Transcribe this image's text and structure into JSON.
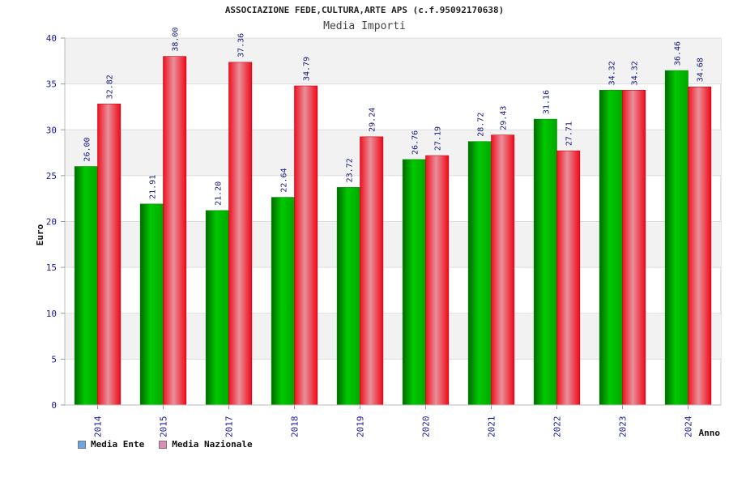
{
  "chart_data": {
    "type": "bar",
    "title": "ASSOCIAZIONE FEDE,CULTURA,ARTE APS (c.f.95092170638)",
    "subtitle": "Media Importi",
    "ylabel": "Euro",
    "xlabel": "Anno",
    "ylim": [
      0,
      40
    ],
    "yticks": [
      0,
      5,
      10,
      15,
      20,
      25,
      30,
      35,
      40
    ],
    "ytick_labels": [
      "0",
      "5",
      "10",
      "15",
      "20",
      "25",
      "30",
      "35",
      "40"
    ],
    "grid": true,
    "legend_position": "bottom-left",
    "categories": [
      "2014",
      "2015",
      "2017",
      "2018",
      "2019",
      "2020",
      "2021",
      "2022",
      "2023",
      "2024"
    ],
    "series": [
      {
        "name": "Media Ente",
        "values": [
          26.0,
          21.91,
          21.2,
          22.64,
          23.72,
          26.76,
          28.72,
          31.16,
          34.32,
          36.46
        ],
        "labels": [
          "26.00",
          "21.91",
          "21.20",
          "22.64",
          "23.72",
          "26.76",
          "28.72",
          "31.16",
          "34.32",
          "36.46"
        ],
        "color": "#00a000",
        "legend_color": "#6aa6e8"
      },
      {
        "name": "Media Nazionale",
        "values": [
          32.82,
          38.0,
          37.36,
          34.79,
          29.24,
          27.19,
          29.43,
          27.71,
          34.32,
          34.68
        ],
        "labels": [
          "32.82",
          "38.00",
          "37.36",
          "34.79",
          "29.24",
          "27.19",
          "29.43",
          "27.71",
          "34.32",
          "34.68"
        ],
        "color": "#ee1122",
        "legend_color": "#e08ab8"
      }
    ]
  }
}
